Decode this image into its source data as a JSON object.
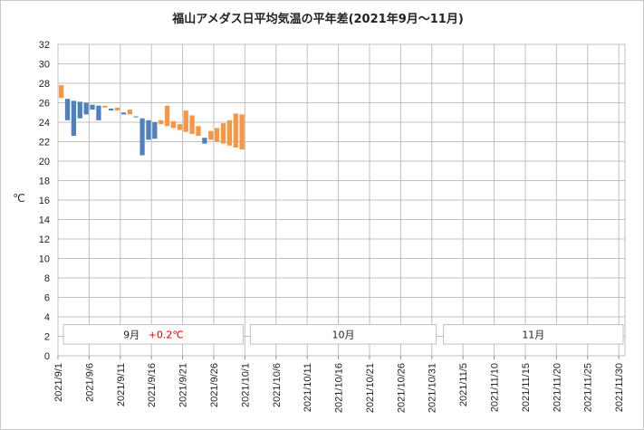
{
  "chart_data": {
    "type": "bar",
    "title": "福山アメダス日平均気温の平年差(2021年9月〜11月)",
    "ylabel": "℃",
    "ylim": [
      0,
      32
    ],
    "yticks": [
      0,
      2,
      4,
      6,
      8,
      10,
      12,
      14,
      16,
      18,
      20,
      22,
      24,
      26,
      28,
      30,
      32
    ],
    "grid": true,
    "x_range": [
      "2021/9/1",
      "2021/11/30"
    ],
    "xtick_labels": [
      "2021/9/1",
      "2021/9/6",
      "2021/9/11",
      "2021/9/16",
      "2021/9/21",
      "2021/9/26",
      "2021/10/1",
      "2021/10/6",
      "2021/10/11",
      "2021/10/16",
      "2021/10/21",
      "2021/10/26",
      "2021/10/31",
      "2021/11/5",
      "2021/11/10",
      "2021/11/15",
      "2021/11/20",
      "2021/11/25",
      "2021/11/30"
    ],
    "colors": {
      "above_normal": "#f79646",
      "below_normal": "#4f81bd"
    },
    "days": [
      {
        "date": "2021/9/1",
        "normal": 26.5,
        "actual": 27.8
      },
      {
        "date": "2021/9/2",
        "normal": 26.4,
        "actual": 24.2
      },
      {
        "date": "2021/9/3",
        "normal": 26.2,
        "actual": 22.6
      },
      {
        "date": "2021/9/4",
        "normal": 26.1,
        "actual": 24.4
      },
      {
        "date": "2021/9/5",
        "normal": 26.0,
        "actual": 24.8
      },
      {
        "date": "2021/9/6",
        "normal": 25.8,
        "actual": 25.3
      },
      {
        "date": "2021/9/7",
        "normal": 25.7,
        "actual": 24.2
      },
      {
        "date": "2021/9/8",
        "normal": 25.5,
        "actual": 25.7
      },
      {
        "date": "2021/9/9",
        "normal": 25.4,
        "actual": 25.2
      },
      {
        "date": "2021/9/10",
        "normal": 25.2,
        "actual": 25.5
      },
      {
        "date": "2021/9/11",
        "normal": 25.0,
        "actual": 24.8
      },
      {
        "date": "2021/9/12",
        "normal": 24.8,
        "actual": 25.3
      },
      {
        "date": "2021/9/13",
        "normal": 24.6,
        "actual": 24.5
      },
      {
        "date": "2021/9/14",
        "normal": 24.4,
        "actual": 20.6
      },
      {
        "date": "2021/9/15",
        "normal": 24.2,
        "actual": 22.2
      },
      {
        "date": "2021/9/16",
        "normal": 24.0,
        "actual": 22.3
      },
      {
        "date": "2021/9/17",
        "normal": 23.8,
        "actual": 24.2
      },
      {
        "date": "2021/9/18",
        "normal": 23.6,
        "actual": 25.7
      },
      {
        "date": "2021/9/19",
        "normal": 23.4,
        "actual": 24.1
      },
      {
        "date": "2021/9/20",
        "normal": 23.2,
        "actual": 23.8
      },
      {
        "date": "2021/9/21",
        "normal": 23.0,
        "actual": 25.2
      },
      {
        "date": "2021/9/22",
        "normal": 22.8,
        "actual": 24.7
      },
      {
        "date": "2021/9/23",
        "normal": 22.6,
        "actual": 23.6
      },
      {
        "date": "2021/9/24",
        "normal": 22.4,
        "actual": 21.8
      },
      {
        "date": "2021/9/25",
        "normal": 22.2,
        "actual": 23.1
      },
      {
        "date": "2021/9/26",
        "normal": 22.0,
        "actual": 23.4
      },
      {
        "date": "2021/9/27",
        "normal": 21.8,
        "actual": 23.9
      },
      {
        "date": "2021/9/28",
        "normal": 21.6,
        "actual": 24.2
      },
      {
        "date": "2021/9/29",
        "normal": 21.4,
        "actual": 24.9
      },
      {
        "date": "2021/9/30",
        "normal": 21.2,
        "actual": 24.8
      }
    ],
    "month_boxes": [
      {
        "label": "9月",
        "anomaly": "+0.2℃"
      },
      {
        "label": "10月",
        "anomaly": ""
      },
      {
        "label": "11月",
        "anomaly": ""
      }
    ]
  }
}
